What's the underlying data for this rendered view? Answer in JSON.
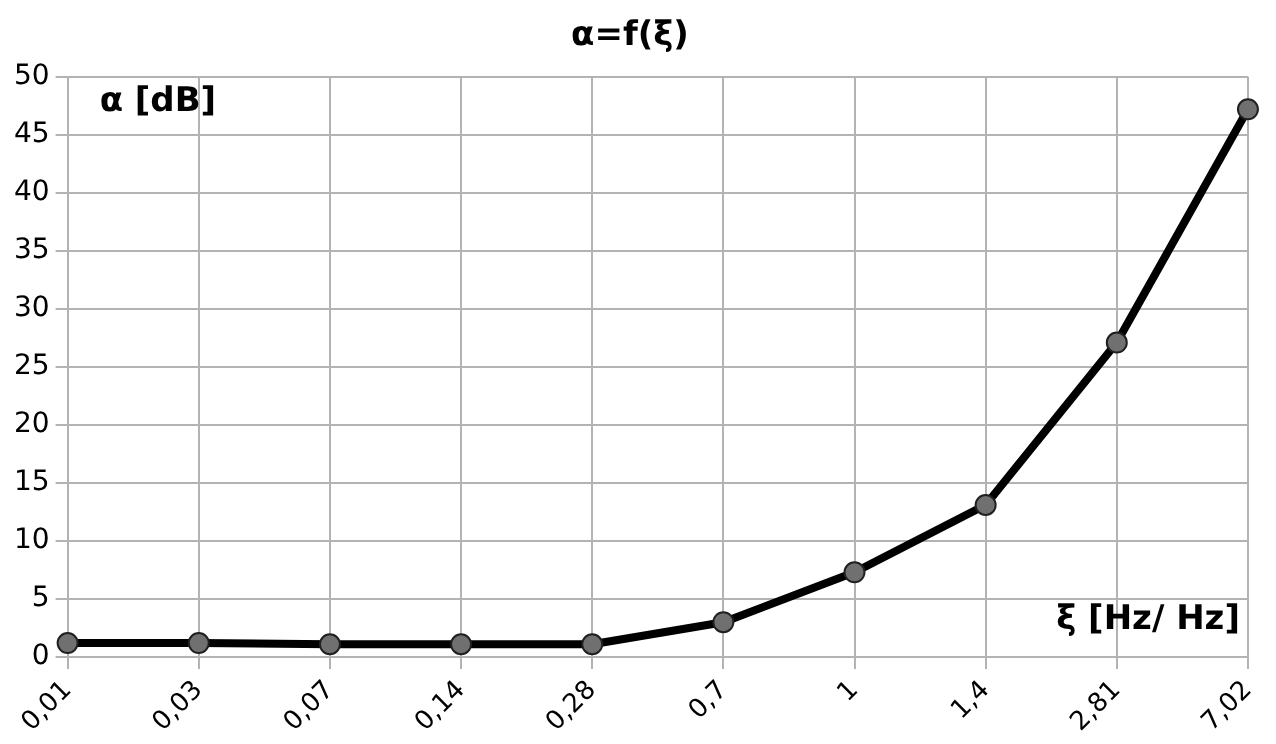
{
  "chart_data": {
    "type": "line",
    "title": "α=f(ξ)",
    "xlabel": "ξ [Hz/ Hz]",
    "ylabel": "α [dB]",
    "categories": [
      "0,01",
      "0,03",
      "0,07",
      "0,14",
      "0,28",
      "0,7",
      "1",
      "1,4",
      "2,81",
      "7,02"
    ],
    "series": [
      {
        "color": "#000000",
        "values": [
          1.2,
          1.2,
          1.1,
          1.1,
          1.1,
          3,
          7.3,
          13.1,
          27.1,
          47.2
        ]
      }
    ],
    "ylim": [
      0,
      50
    ],
    "yticks": [
      0,
      5,
      10,
      15,
      20,
      25,
      30,
      35,
      40,
      45,
      50
    ],
    "grid": true,
    "marker": "circle",
    "line_style": "solid"
  }
}
